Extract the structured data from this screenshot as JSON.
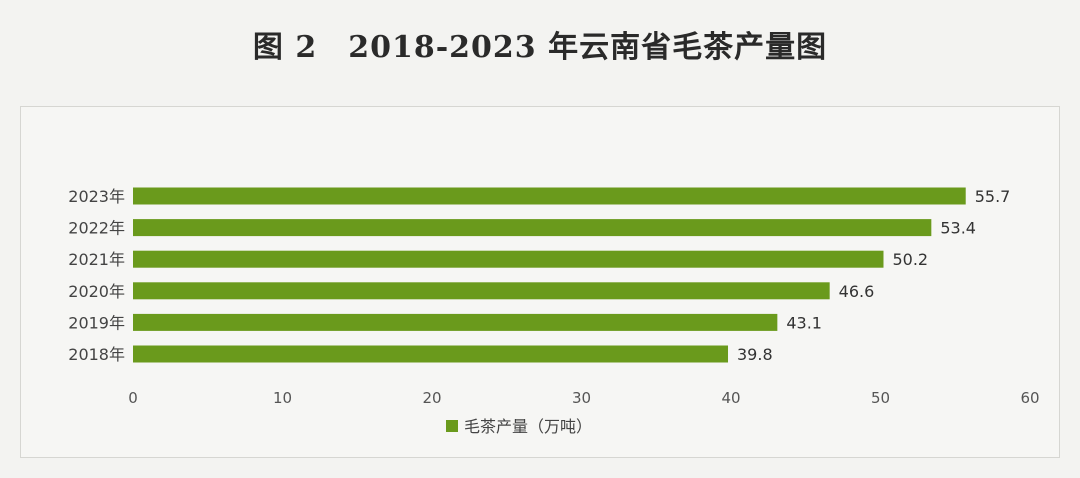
{
  "chart_data": {
    "type": "bar",
    "orientation": "horizontal",
    "title": "图 2　2018-2023 年云南省毛茶产量图",
    "categories": [
      "2023年",
      "2022年",
      "2021年",
      "2020年",
      "2019年",
      "2018年"
    ],
    "series": [
      {
        "name": "毛茶产量（万吨）",
        "values": [
          55.7,
          53.4,
          50.2,
          46.6,
          43.1,
          39.8
        ],
        "color": "#6a9a1c"
      }
    ],
    "xticks": [
      "0",
      "10",
      "20",
      "30",
      "40",
      "50",
      "60"
    ],
    "xlim": [
      0,
      60
    ],
    "grid": false,
    "legend_position": "bottom"
  }
}
